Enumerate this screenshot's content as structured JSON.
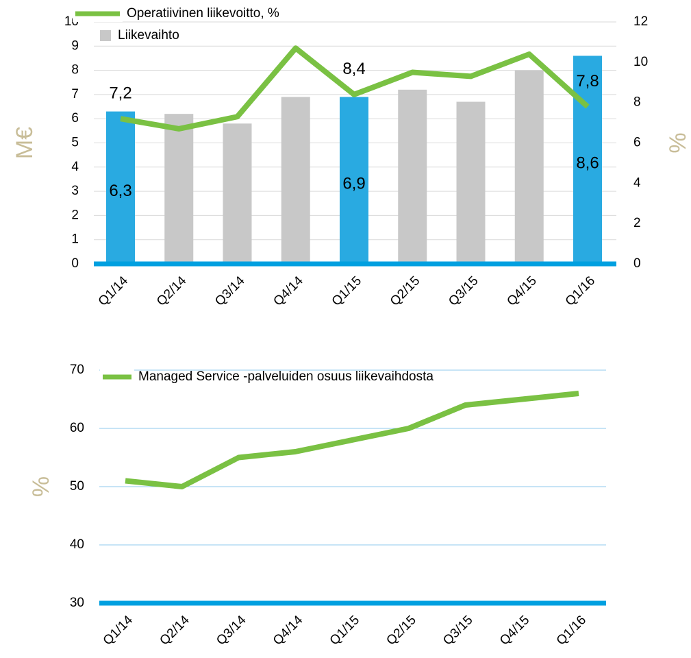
{
  "chart_data": [
    {
      "type": "bar",
      "categories": [
        "Q1/14",
        "Q2/14",
        "Q3/14",
        "Q4/14",
        "Q1/15",
        "Q2/15",
        "Q3/15",
        "Q4/15",
        "Q1/16"
      ],
      "y_label": "M€",
      "y2_label": "%",
      "ylim": [
        0,
        10
      ],
      "yticks": [
        0,
        1,
        2,
        3,
        4,
        5,
        6,
        7,
        8,
        9,
        10
      ],
      "y2lim": [
        0,
        12
      ],
      "y2ticks": [
        0,
        2,
        4,
        6,
        8,
        10,
        12
      ],
      "grid": true,
      "series": [
        {
          "name": "Operatiivinen liikevoitto, %",
          "type": "line",
          "axis": "y2",
          "color": "#7ac143",
          "values": [
            7.2,
            6.7,
            7.3,
            10.7,
            8.4,
            9.5,
            9.3,
            10.4,
            7.8
          ],
          "value_labels": [
            "7,2",
            null,
            null,
            null,
            "8,4",
            null,
            null,
            null,
            "7,8"
          ]
        },
        {
          "name": "Liikevaihto",
          "type": "bar",
          "color": "#c8c8c8",
          "colors": [
            "#29aae1",
            "#c8c8c8",
            "#c8c8c8",
            "#c8c8c8",
            "#29aae1",
            "#c8c8c8",
            "#c8c8c8",
            "#c8c8c8",
            "#29aae1"
          ],
          "values": [
            6.3,
            6.2,
            5.8,
            6.9,
            6.9,
            7.2,
            6.7,
            8.0,
            8.6
          ],
          "value_labels": [
            "6,3",
            null,
            null,
            null,
            "6,9",
            null,
            null,
            null,
            "8,6"
          ]
        }
      ]
    },
    {
      "type": "line",
      "categories": [
        "Q1/14",
        "Q2/14",
        "Q3/14",
        "Q4/14",
        "Q1/15",
        "Q2/15",
        "Q3/15",
        "Q4/15",
        "Q1/16"
      ],
      "y_label": "%",
      "ylim": [
        30,
        70
      ],
      "yticks": [
        30,
        40,
        50,
        60,
        70
      ],
      "grid": true,
      "series": [
        {
          "name": "Managed Service -palveluiden osuus liikevaihdosta",
          "type": "line",
          "color": "#7ac143",
          "values": [
            51,
            50,
            55,
            56,
            58,
            60,
            64,
            65,
            66
          ]
        }
      ]
    }
  ]
}
